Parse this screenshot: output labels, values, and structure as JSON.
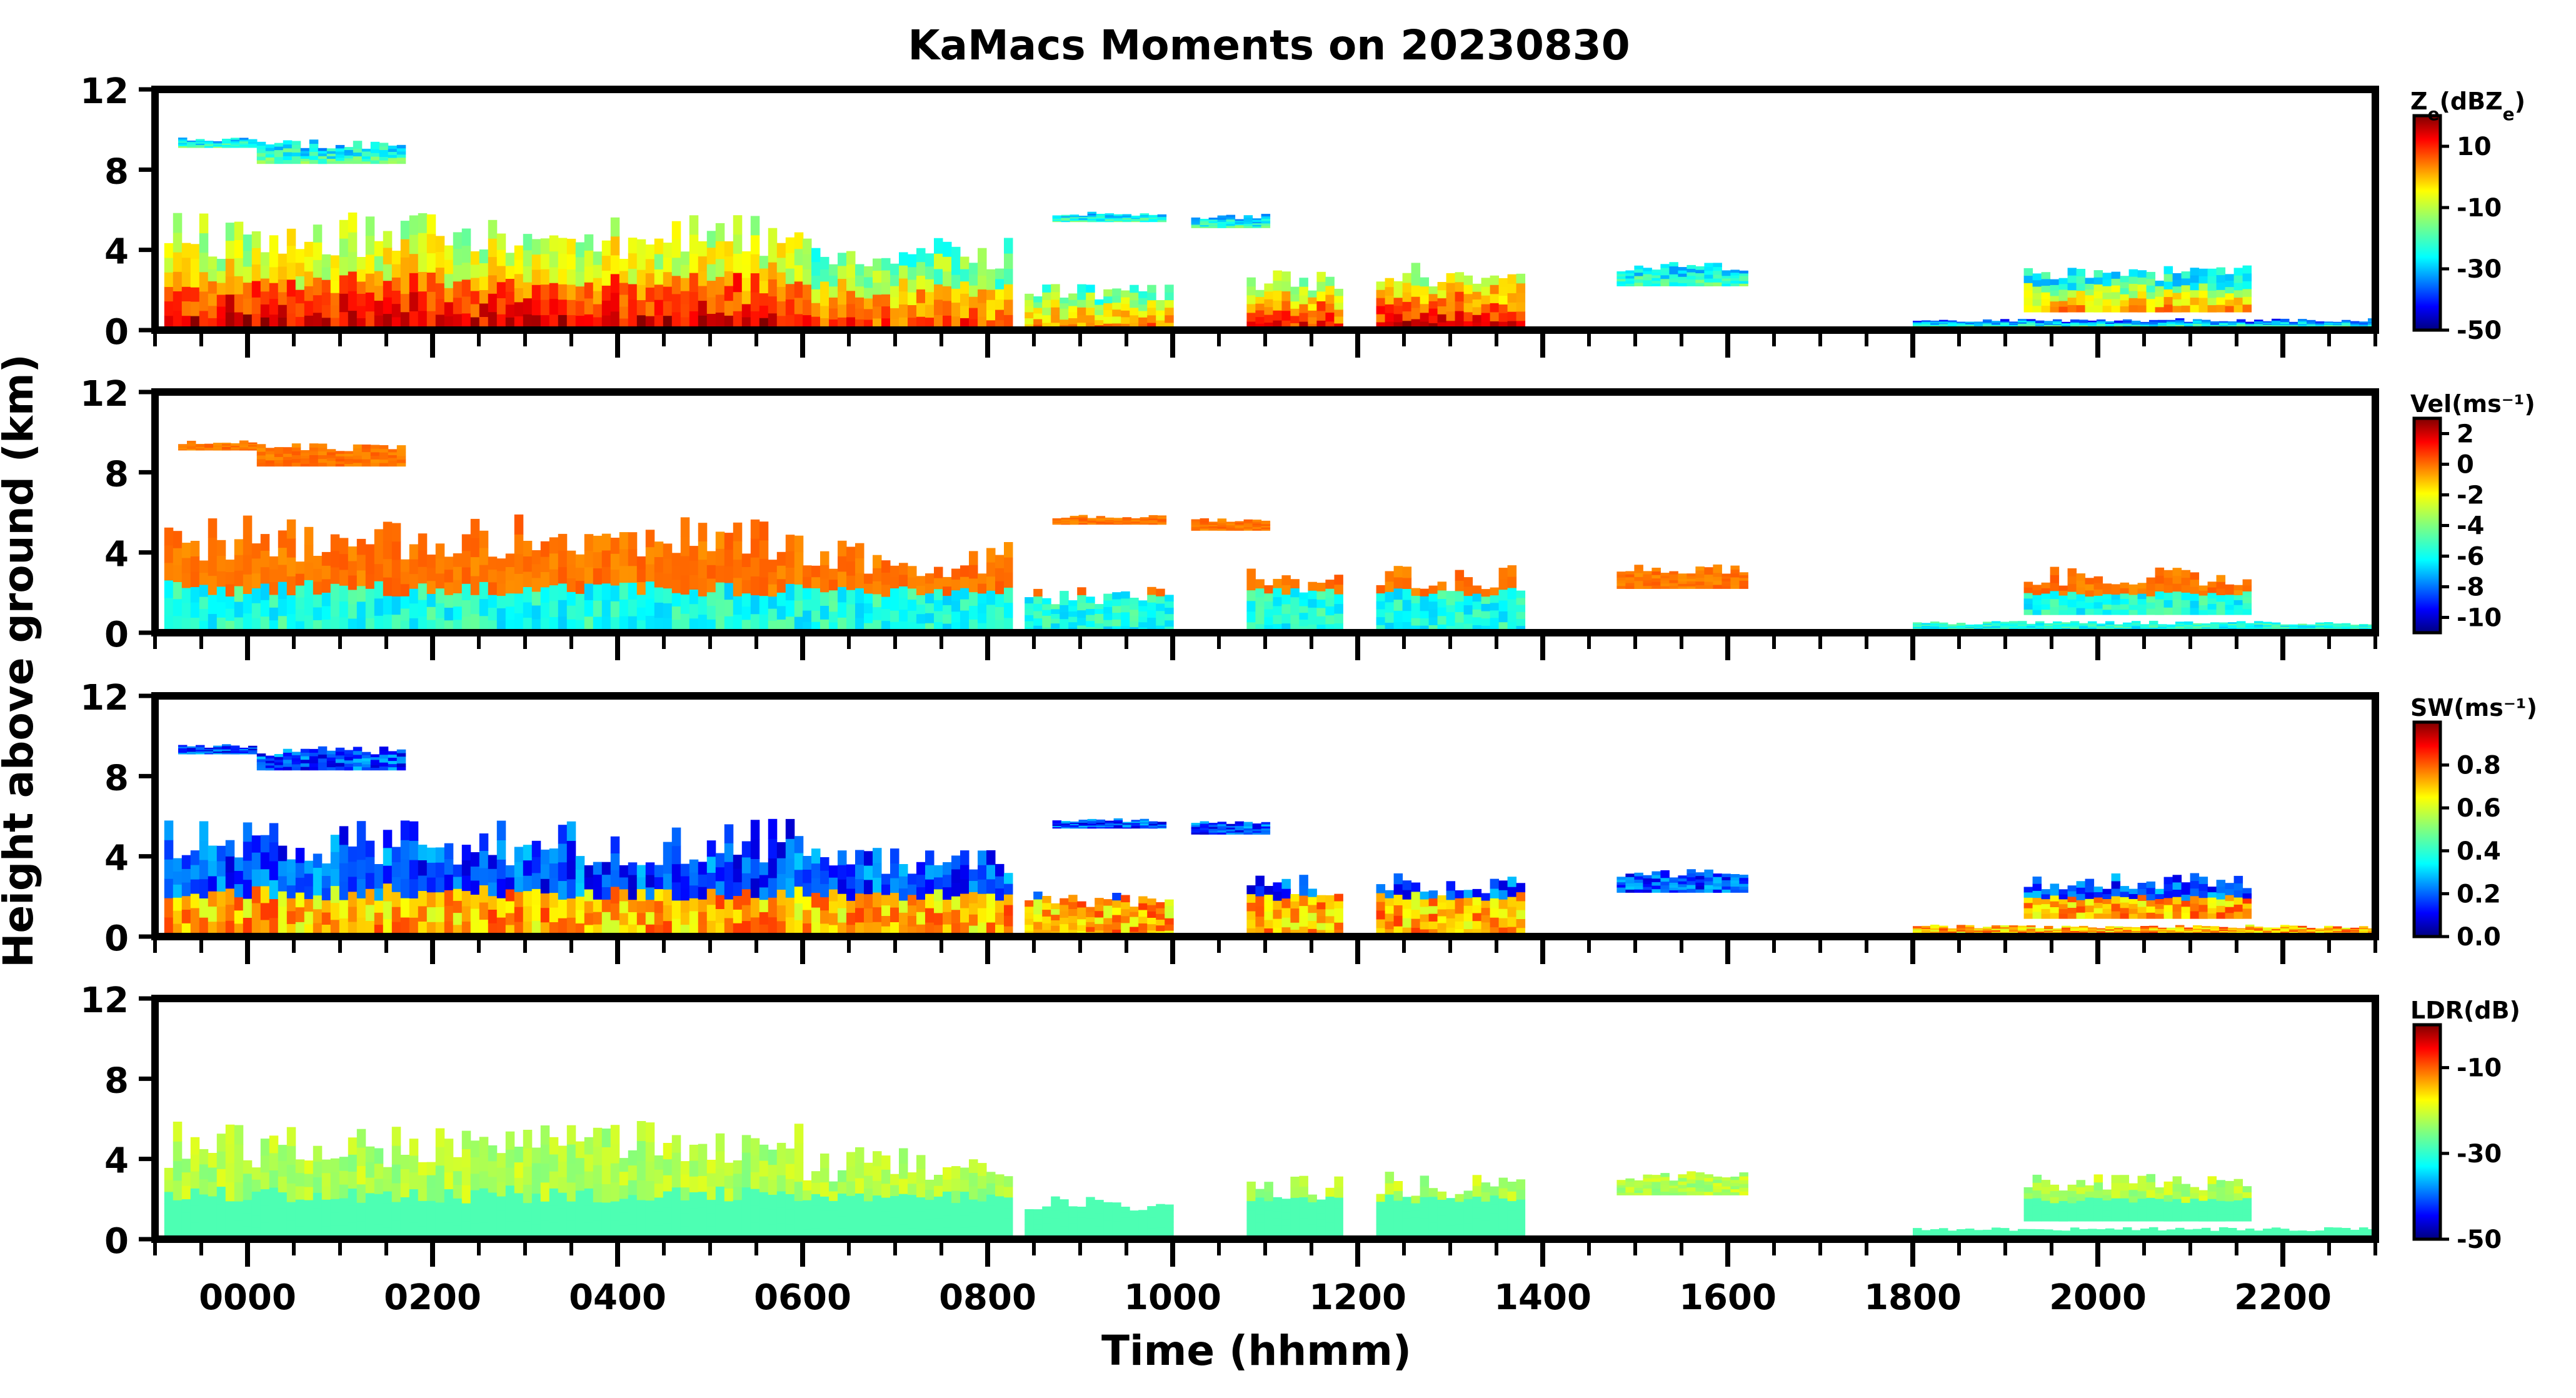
{
  "chart_data": {
    "type": "heatmap",
    "title": "KaMacs Moments on 20230830",
    "xlabel": "Time (hhmm)",
    "ylabel": "Height above ground (km)",
    "xlim": [
      -100,
      2300
    ],
    "x_tick_labels": [
      "0000",
      "0200",
      "0400",
      "0600",
      "0800",
      "1000",
      "1200",
      "1400",
      "1600",
      "1800",
      "2000",
      "2200"
    ],
    "ylim": [
      0,
      12
    ],
    "y_tick_labels": [
      "0",
      "4",
      "8",
      "12"
    ],
    "panels": [
      {
        "name": "Ze",
        "colorbar_label": "Ze(dBZe)",
        "colorbar_label_main": "Z",
        "colorbar_label_sub1": "e",
        "colorbar_label_mid": "(dBZ",
        "colorbar_label_sub2": "e",
        "colorbar_label_end": ")",
        "colorbar_ticks": [
          10,
          -10,
          -30,
          -50
        ],
        "colorbar_range": [
          -50,
          20
        ],
        "colormap": "jet"
      },
      {
        "name": "Vel",
        "colorbar_label": "Vel(ms⁻¹)",
        "colorbar_ticks": [
          2,
          0,
          -2,
          -4,
          -6,
          -8,
          -10
        ],
        "colorbar_range": [
          -11,
          3
        ],
        "colormap": "jet"
      },
      {
        "name": "SW",
        "colorbar_label": "SW(ms⁻¹)",
        "colorbar_ticks": [
          0.8,
          0.6,
          0.4,
          0.2,
          0.0
        ],
        "colorbar_tick_labels": [
          "0.8",
          "0.6",
          "0.4",
          "0.2",
          "0.0"
        ],
        "colorbar_range": [
          0,
          1
        ],
        "colormap": "jet"
      },
      {
        "name": "LDR",
        "colorbar_label": "LDR(dB)",
        "colorbar_ticks": [
          -10,
          -30,
          -50
        ],
        "colorbar_range": [
          -50,
          0
        ],
        "colormap": "jet"
      }
    ],
    "grid": false,
    "legend": "colorbar-right"
  },
  "colors": {
    "jet": [
      "#00007f",
      "#0000ff",
      "#007fff",
      "#00ffff",
      "#7fff7f",
      "#ffff00",
      "#ff7f00",
      "#ff0000",
      "#7f0000"
    ]
  }
}
